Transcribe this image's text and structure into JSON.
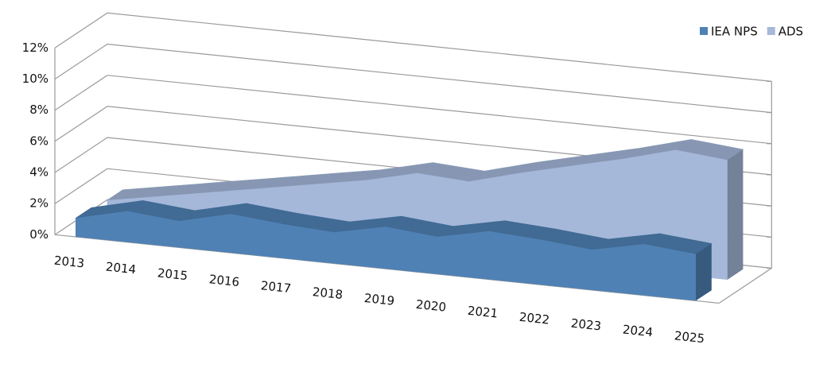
{
  "chart_data": {
    "type": "area3d",
    "categories": [
      "2013",
      "2014",
      "2015",
      "2016",
      "2017",
      "2018",
      "2019",
      "2020",
      "2021",
      "2022",
      "2023",
      "2024",
      "2025"
    ],
    "series": [
      {
        "name": "IEA NPS",
        "color": "#4f81b5",
        "values": [
          1.2,
          2.0,
          1.7,
          2.5,
          2.2,
          2.0,
          2.7,
          2.4,
          3.1,
          2.9,
          2.6,
          3.3,
          3.0
        ]
      },
      {
        "name": "ADS",
        "color": "#a5b8da",
        "values": [
          1.0,
          1.6,
          2.2,
          2.8,
          3.4,
          4.0,
          4.8,
          4.6,
          5.5,
          6.3,
          7.1,
          8.0,
          7.7
        ]
      }
    ],
    "ylim": [
      0,
      12
    ],
    "yticks": [
      {
        "value": 0,
        "label": "0%"
      },
      {
        "value": 2,
        "label": "2%"
      },
      {
        "value": 4,
        "label": "4%"
      },
      {
        "value": 6,
        "label": "6%"
      },
      {
        "value": 8,
        "label": "8%"
      },
      {
        "value": 10,
        "label": "10%"
      },
      {
        "value": 12,
        "label": "12%"
      }
    ],
    "grid": true,
    "legend": "top-right"
  }
}
